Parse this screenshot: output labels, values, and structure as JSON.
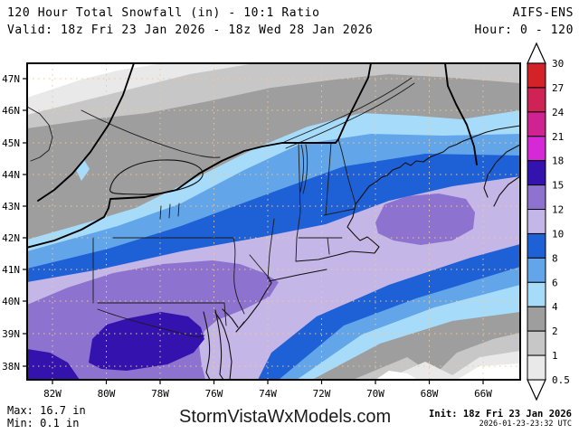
{
  "header": {
    "title": "120 Hour Total Snowfall (in) - 10:1 Ratio",
    "model": "AIFS-ENS",
    "valid": "Valid: 18z Fri 23 Jan 2026 - 18z Wed 28 Jan 2026",
    "hour_range": "Hour: 0 - 120"
  },
  "footer": {
    "max_label": "Max: 16.7 in",
    "min_label": "Min: 0.1 in",
    "watermark": "StormVistaWxModels.com",
    "init_label": "Init: 18z Fri 23 Jan 2026",
    "generated": "2026-01-23-23:32 UTC"
  },
  "map": {
    "lat_labels": [
      "47N",
      "46N",
      "45N",
      "44N",
      "43N",
      "42N",
      "41N",
      "40N",
      "39N",
      "38N"
    ],
    "lon_labels": [
      "82W",
      "80W",
      "78W",
      "76W",
      "74W",
      "72W",
      "70W",
      "68W",
      "66W"
    ]
  },
  "colorbar": {
    "unit": "in",
    "labels": [
      "30",
      "27",
      "24",
      "21",
      "18",
      "15",
      "12",
      "10",
      "8",
      "6",
      "4",
      "2",
      "1",
      "0.5"
    ],
    "cells": [
      "v27",
      "v24",
      "v21",
      "v18",
      "v15",
      "v12",
      "v10",
      "v8",
      "v6",
      "v4",
      "v2",
      "v1",
      "v05"
    ]
  },
  "palette": {
    "v27": "#d42328",
    "v24": "#cf2356",
    "v21": "#cf2391",
    "v18": "#d429d4",
    "v15": "#3412ae",
    "v12": "#8d72cf",
    "v10": "#c5b6e8",
    "v8": "#1e60d6",
    "v6": "#62a5e8",
    "v4": "#a6dbfa",
    "v2": "#9e9e9e",
    "v1": "#c7c7c7",
    "v05": "#e9e9e9",
    "lt05": "#ffffff",
    "graticule": "#e8c9a2"
  }
}
